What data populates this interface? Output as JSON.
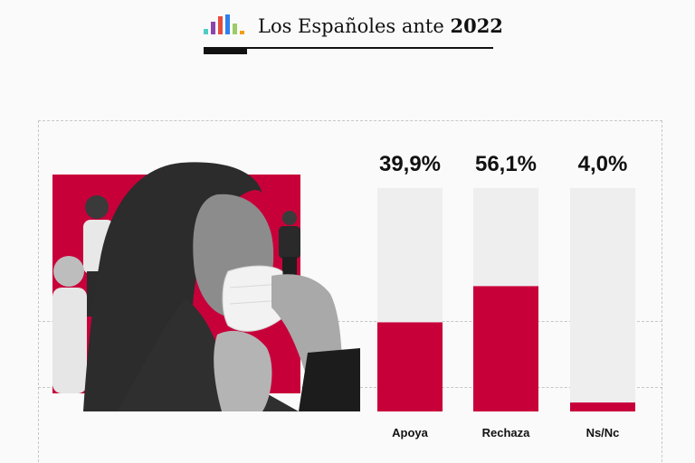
{
  "header": {
    "title_prefix": "Los Españoles ante ",
    "title_year": "2022"
  },
  "logo_colors": [
    "#4ecdc4",
    "#8e44ad",
    "#e74c3c",
    "#2f80ed",
    "#9ccc65",
    "#f39c12"
  ],
  "colors": {
    "accent": "#c8003a",
    "bar_track": "#eeeeee",
    "text": "#111111"
  },
  "chart_data": {
    "type": "bar",
    "categories": [
      "Apoya",
      "Rechaza",
      "Ns/Nc"
    ],
    "values": [
      39.9,
      56.1,
      4.0
    ],
    "value_labels": [
      "39,9%",
      "56,1%",
      "4,0%"
    ],
    "unit": "%",
    "ylim": [
      0,
      100
    ],
    "grid": false,
    "legend": "none"
  }
}
